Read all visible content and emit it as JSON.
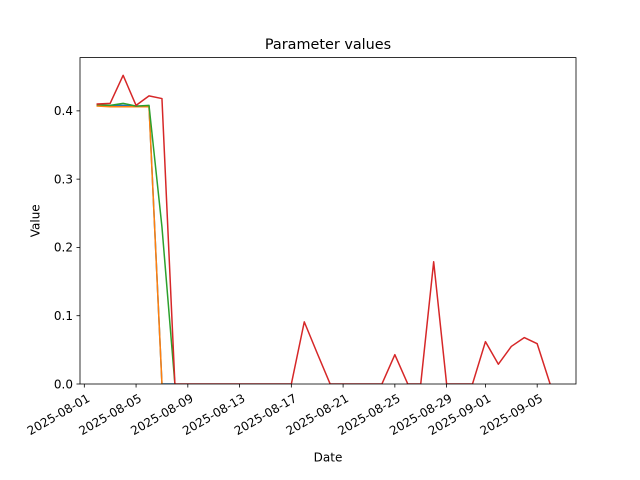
{
  "chart_data": {
    "type": "line",
    "title": "Parameter values",
    "xlabel": "Date",
    "ylabel": "Value",
    "x_type": "date",
    "xlim": [
      "2025-07-31T16:00",
      "2025-09-08T00:00"
    ],
    "ylim": [
      0,
      0.478
    ],
    "grid": false,
    "x_ticks": [
      "2025-08-01",
      "2025-08-05",
      "2025-08-09",
      "2025-08-13",
      "2025-08-17",
      "2025-08-21",
      "2025-08-25",
      "2025-08-29",
      "2025-09-01",
      "2025-09-05"
    ],
    "y_ticks": [
      0.0,
      0.1,
      0.2,
      0.3,
      0.4
    ],
    "y_tick_labels": [
      "0.0",
      "0.1",
      "0.2",
      "0.3",
      "0.4"
    ],
    "series": [
      {
        "color": "#1f77b4",
        "points": [
          [
            "2025-08-02",
            0.408
          ],
          [
            "2025-08-03",
            0.408
          ],
          [
            "2025-08-04",
            0.408
          ],
          [
            "2025-08-05",
            0.407
          ],
          [
            "2025-08-06",
            0.407
          ],
          [
            "2025-08-07",
            0.0
          ],
          [
            "2025-08-08",
            0.0
          ]
        ]
      },
      {
        "color": "#ff7f0e",
        "points": [
          [
            "2025-08-02",
            0.407
          ],
          [
            "2025-08-03",
            0.406
          ],
          [
            "2025-08-04",
            0.406
          ],
          [
            "2025-08-05",
            0.406
          ],
          [
            "2025-08-06",
            0.406
          ],
          [
            "2025-08-07",
            0.0
          ]
        ]
      },
      {
        "color": "#2ca02c",
        "points": [
          [
            "2025-08-02",
            0.409
          ],
          [
            "2025-08-03",
            0.408
          ],
          [
            "2025-08-04",
            0.411
          ],
          [
            "2025-08-05",
            0.407
          ],
          [
            "2025-08-06",
            0.408
          ],
          [
            "2025-08-07",
            0.23
          ],
          [
            "2025-08-08",
            0.0
          ]
        ]
      },
      {
        "color": "#d62728",
        "points": [
          [
            "2025-08-02",
            0.41
          ],
          [
            "2025-08-03",
            0.411
          ],
          [
            "2025-08-04",
            0.452
          ],
          [
            "2025-08-05",
            0.408
          ],
          [
            "2025-08-06",
            0.422
          ],
          [
            "2025-08-07",
            0.418
          ],
          [
            "2025-08-08",
            0.0
          ],
          [
            "2025-08-09",
            0.0
          ],
          [
            "2025-08-10",
            0.0
          ],
          [
            "2025-08-11",
            0.0
          ],
          [
            "2025-08-12",
            0.0
          ],
          [
            "2025-08-13",
            0.0
          ],
          [
            "2025-08-14",
            0.0
          ],
          [
            "2025-08-15",
            0.0
          ],
          [
            "2025-08-16",
            0.0
          ],
          [
            "2025-08-17",
            0.0
          ],
          [
            "2025-08-18",
            0.091
          ],
          [
            "2025-08-19",
            0.045
          ],
          [
            "2025-08-20",
            0.0
          ],
          [
            "2025-08-21",
            0.0
          ],
          [
            "2025-08-22",
            0.0
          ],
          [
            "2025-08-23",
            0.0
          ],
          [
            "2025-08-24",
            0.0
          ],
          [
            "2025-08-25",
            0.043
          ],
          [
            "2025-08-26",
            0.0
          ],
          [
            "2025-08-27",
            0.0
          ],
          [
            "2025-08-28",
            0.179
          ],
          [
            "2025-08-29",
            0.0
          ],
          [
            "2025-08-30",
            0.0
          ],
          [
            "2025-08-31",
            0.0
          ],
          [
            "2025-09-01",
            0.062
          ],
          [
            "2025-09-02",
            0.029
          ],
          [
            "2025-09-03",
            0.055
          ],
          [
            "2025-09-04",
            0.068
          ],
          [
            "2025-09-05",
            0.059
          ],
          [
            "2025-09-06",
            0.0
          ]
        ]
      }
    ]
  }
}
